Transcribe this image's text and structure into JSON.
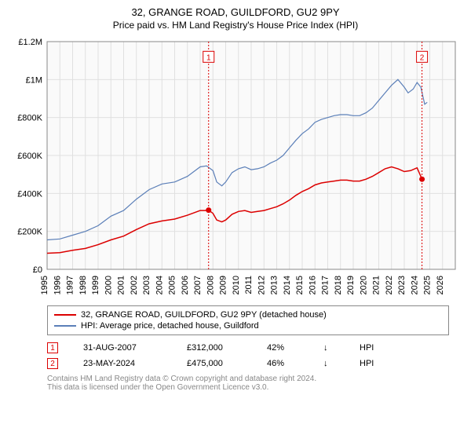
{
  "title": "32, GRANGE ROAD, GUILDFORD, GU2 9PY",
  "subtitle": "Price paid vs. HM Land Registry's House Price Index (HPI)",
  "chart": {
    "type": "line",
    "background_color": "#fafafa",
    "grid_color": "#e0e0e0",
    "axis_color": "#888888",
    "x_years": [
      1995,
      1996,
      1997,
      1998,
      1999,
      2000,
      2001,
      2002,
      2003,
      2004,
      2005,
      2006,
      2007,
      2008,
      2009,
      2010,
      2011,
      2012,
      2013,
      2014,
      2015,
      2016,
      2017,
      2018,
      2019,
      2020,
      2021,
      2022,
      2023,
      2024,
      2025,
      2026
    ],
    "xlim": [
      1995,
      2027
    ],
    "ylim": [
      0,
      1200000
    ],
    "yticks": [
      0,
      200000,
      400000,
      600000,
      800000,
      1000000,
      1200000
    ],
    "ytick_labels": [
      "£0",
      "£200K",
      "£400K",
      "£600K",
      "£800K",
      "£1M",
      "£1.2M"
    ],
    "series_property": {
      "label": "32, GRANGE ROAD, GUILDFORD, GU2 9PY (detached house)",
      "color": "#dc0000",
      "width": 1.5,
      "data": [
        [
          1995,
          85000
        ],
        [
          1996,
          88000
        ],
        [
          1997,
          100000
        ],
        [
          1998,
          110000
        ],
        [
          1999,
          130000
        ],
        [
          2000,
          155000
        ],
        [
          2001,
          175000
        ],
        [
          2002,
          210000
        ],
        [
          2003,
          240000
        ],
        [
          2004,
          255000
        ],
        [
          2005,
          265000
        ],
        [
          2006,
          285000
        ],
        [
          2007,
          310000
        ],
        [
          2007.5,
          310000
        ],
        [
          2007.66,
          312000
        ],
        [
          2008,
          295000
        ],
        [
          2008.3,
          260000
        ],
        [
          2008.7,
          250000
        ],
        [
          2009,
          260000
        ],
        [
          2009.5,
          290000
        ],
        [
          2010,
          305000
        ],
        [
          2010.5,
          310000
        ],
        [
          2011,
          300000
        ],
        [
          2011.5,
          305000
        ],
        [
          2012,
          310000
        ],
        [
          2012.5,
          320000
        ],
        [
          2013,
          330000
        ],
        [
          2013.5,
          345000
        ],
        [
          2014,
          365000
        ],
        [
          2014.5,
          390000
        ],
        [
          2015,
          410000
        ],
        [
          2015.5,
          425000
        ],
        [
          2016,
          445000
        ],
        [
          2016.5,
          455000
        ],
        [
          2017,
          460000
        ],
        [
          2017.5,
          465000
        ],
        [
          2018,
          470000
        ],
        [
          2018.5,
          470000
        ],
        [
          2019,
          465000
        ],
        [
          2019.5,
          465000
        ],
        [
          2020,
          475000
        ],
        [
          2020.5,
          490000
        ],
        [
          2021,
          510000
        ],
        [
          2021.5,
          530000
        ],
        [
          2022,
          540000
        ],
        [
          2022.5,
          530000
        ],
        [
          2023,
          515000
        ],
        [
          2023.5,
          520000
        ],
        [
          2024,
          535000
        ],
        [
          2024.39,
          475000
        ]
      ]
    },
    "series_hpi": {
      "label": "HPI: Average price, detached house, Guildford",
      "color": "#5b7fb8",
      "width": 1.2,
      "data": [
        [
          1995,
          155000
        ],
        [
          1996,
          160000
        ],
        [
          1997,
          180000
        ],
        [
          1998,
          200000
        ],
        [
          1999,
          230000
        ],
        [
          2000,
          280000
        ],
        [
          2001,
          310000
        ],
        [
          2002,
          370000
        ],
        [
          2003,
          420000
        ],
        [
          2004,
          450000
        ],
        [
          2005,
          460000
        ],
        [
          2006,
          490000
        ],
        [
          2007,
          540000
        ],
        [
          2007.5,
          545000
        ],
        [
          2008,
          520000
        ],
        [
          2008.3,
          460000
        ],
        [
          2008.7,
          440000
        ],
        [
          2009,
          460000
        ],
        [
          2009.5,
          510000
        ],
        [
          2010,
          530000
        ],
        [
          2010.5,
          540000
        ],
        [
          2011,
          525000
        ],
        [
          2011.5,
          530000
        ],
        [
          2012,
          540000
        ],
        [
          2012.5,
          560000
        ],
        [
          2013,
          575000
        ],
        [
          2013.5,
          600000
        ],
        [
          2014,
          640000
        ],
        [
          2014.5,
          680000
        ],
        [
          2015,
          715000
        ],
        [
          2015.5,
          740000
        ],
        [
          2016,
          775000
        ],
        [
          2016.5,
          790000
        ],
        [
          2017,
          800000
        ],
        [
          2017.5,
          810000
        ],
        [
          2018,
          815000
        ],
        [
          2018.5,
          815000
        ],
        [
          2019,
          810000
        ],
        [
          2019.5,
          810000
        ],
        [
          2020,
          825000
        ],
        [
          2020.5,
          850000
        ],
        [
          2021,
          890000
        ],
        [
          2021.5,
          930000
        ],
        [
          2022,
          970000
        ],
        [
          2022.5,
          1000000
        ],
        [
          2023,
          960000
        ],
        [
          2023.3,
          930000
        ],
        [
          2023.7,
          950000
        ],
        [
          2024,
          985000
        ],
        [
          2024.3,
          960000
        ],
        [
          2024.6,
          870000
        ],
        [
          2024.8,
          880000
        ]
      ]
    },
    "sale_markers": [
      {
        "n": 1,
        "x": 2007.66,
        "y": 312000,
        "color": "#dc0000",
        "label_y": 1120000
      },
      {
        "n": 2,
        "x": 2024.39,
        "y": 475000,
        "color": "#dc0000",
        "label_y": 1120000
      }
    ]
  },
  "legend": {
    "items": [
      {
        "color": "#dc0000",
        "label": "32, GRANGE ROAD, GUILDFORD, GU2 9PY (detached house)"
      },
      {
        "color": "#5b7fb8",
        "label": "HPI: Average price, detached house, Guildford"
      }
    ]
  },
  "sales": [
    {
      "n": "1",
      "color": "#dc0000",
      "date": "31-AUG-2007",
      "price": "£312,000",
      "pct": "42%",
      "arrow": "↓",
      "hpi": "HPI"
    },
    {
      "n": "2",
      "color": "#dc0000",
      "date": "23-MAY-2024",
      "price": "£475,000",
      "pct": "46%",
      "arrow": "↓",
      "hpi": "HPI"
    }
  ],
  "footer": {
    "line1": "Contains HM Land Registry data © Crown copyright and database right 2024.",
    "line2": "This data is licensed under the Open Government Licence v3.0."
  }
}
